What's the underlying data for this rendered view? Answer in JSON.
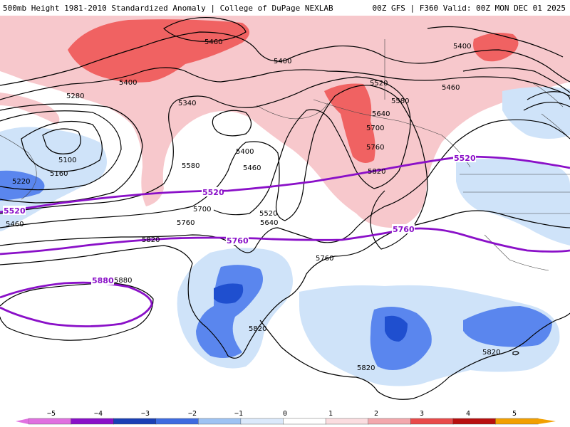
{
  "header": {
    "title_left": "500mb Height 1981-2010 Standardized Anomaly | College of DuPage NEXLAB",
    "title_right": "00Z GFS | F360 Valid: 00Z MON DEC 01 2025"
  },
  "colors": {
    "anom_pos1": "#f7c8cc",
    "anom_pos2": "#f06262",
    "anom_neg1": "#cfe3f9",
    "anom_neg2": "#5a86ee",
    "anom_neg3": "#1f4fcf",
    "contour": "#000000",
    "highlight_contour": "#8a10c8"
  },
  "contour_labels": [
    "5460",
    "5400",
    "5400",
    "5400",
    "5280",
    "5340",
    "5520",
    "5580",
    "5640",
    "5700",
    "5760",
    "5820",
    "5460",
    "5100",
    "5160",
    "5220",
    "5580",
    "5400",
    "5460",
    "5700",
    "5640",
    "5520",
    "5760",
    "5820",
    "5760",
    "5820",
    "5880",
    "5820",
    "5820",
    "5820",
    "5460"
  ],
  "highlight_labels": [
    "5520",
    "5520",
    "5520",
    "5760",
    "5760",
    "5880"
  ],
  "colorbar": {
    "ticks": [
      "−5",
      "−4",
      "−3",
      "−2",
      "−1",
      "0",
      "1",
      "2",
      "3",
      "4",
      "5"
    ],
    "colors": [
      "#e070e0",
      "#8a10c8",
      "#1a3fb5",
      "#3d6be0",
      "#9ec3f3",
      "#dbe9fb",
      "#ffffff",
      "#fbdde0",
      "#f3a8ad",
      "#e84a4a",
      "#b80f0f",
      "#f2a000"
    ]
  }
}
